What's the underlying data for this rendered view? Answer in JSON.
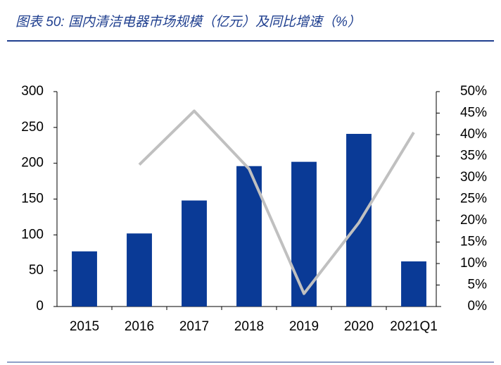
{
  "chart_data": {
    "type": "bar_line",
    "title": "图表 50: 国内清洁电器市场规模（亿元）及同比增速（%）",
    "categories": [
      "2015",
      "2016",
      "2017",
      "2018",
      "2019",
      "2020",
      "2021Q1"
    ],
    "series": [
      {
        "type": "bar",
        "color": "#0a3a96",
        "values": [
          77,
          102,
          148,
          196,
          202,
          241,
          63
        ]
      },
      {
        "type": "line",
        "color": "#c0c0c0",
        "axis": "y2",
        "values": [
          null,
          33,
          45.5,
          32,
          3,
          19.5,
          40.5
        ]
      }
    ],
    "ylim": [
      0,
      300
    ],
    "yticks": [
      0,
      50,
      100,
      150,
      200,
      250,
      300
    ],
    "y2lim": [
      0,
      50
    ],
    "y2ticks": [
      {
        "value": 0,
        "label": "0%"
      },
      {
        "value": 5,
        "label": "5%"
      },
      {
        "value": 10,
        "label": "10%"
      },
      {
        "value": 15,
        "label": "15%"
      },
      {
        "value": 20,
        "label": "20%"
      },
      {
        "value": 25,
        "label": "25%"
      },
      {
        "value": 30,
        "label": "30%"
      },
      {
        "value": 35,
        "label": "35%"
      },
      {
        "value": 40,
        "label": "40%"
      },
      {
        "value": 45,
        "label": "45%"
      },
      {
        "value": 50,
        "label": "50%"
      }
    ],
    "grid": false
  }
}
